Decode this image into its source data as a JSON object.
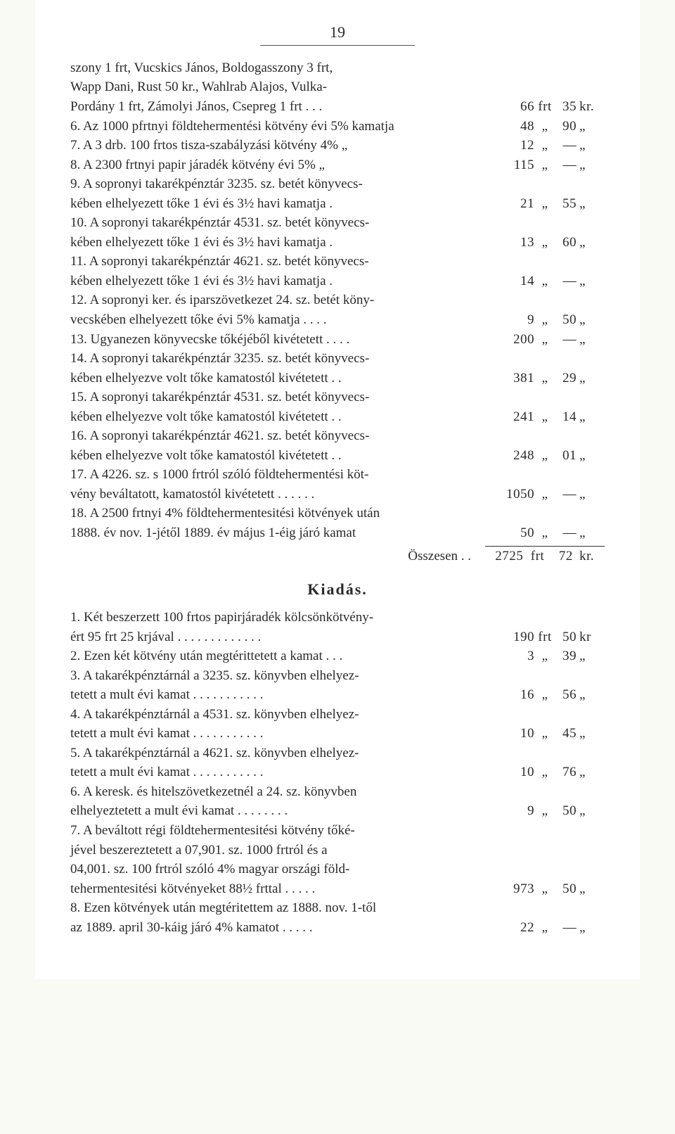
{
  "page_number": "19",
  "lines": [
    {
      "text": "szony 1 frt, Vucskics János, Boldogasszony 3 frt,",
      "amount": null,
      "indent": "first"
    },
    {
      "text": "Wapp Dani, Rust 50 kr., Wahlrab Alajos, Vulka-",
      "amount": null,
      "indent": "first"
    },
    {
      "text": "Pordány 1 frt, Zámolyi János, Csepreg 1 frt . . .",
      "amount": {
        "frt": "66",
        "u1": "frt",
        "kr": "35",
        "u2": "kr."
      },
      "indent": "first"
    },
    {
      "text": "6. Az 1000 pfrtnyi földtehermentési kötvény évi 5% kamatja",
      "amount": {
        "frt": "48",
        "u1": "„",
        "kr": "90",
        "u2": "„"
      }
    },
    {
      "text": "7. A 3 drb. 100 frtos tisza-szabályzási kötvény 4%   „",
      "amount": {
        "frt": "12",
        "u1": "„",
        "kr": "—",
        "u2": "„"
      }
    },
    {
      "text": "8. A 2300 frtnyi papir járadék kötvény évi 5%   „",
      "amount": {
        "frt": "115",
        "u1": "„",
        "kr": "—",
        "u2": "„"
      }
    },
    {
      "text": "9. A sopronyi takarékpénztár 3235. sz. betét könyvecs-",
      "amount": null
    },
    {
      "text": "kében elhelyezett tőke 1 évi és 3½ havi kamatja .",
      "amount": {
        "frt": "21",
        "u1": "„",
        "kr": "55",
        "u2": "„"
      },
      "indent": "cont"
    },
    {
      "text": "10. A sopronyi takarékpénztár 4531. sz. betét könyvecs-",
      "amount": null
    },
    {
      "text": "kében elhelyezett tőke 1 évi és 3½ havi kamatja .",
      "amount": {
        "frt": "13",
        "u1": "„",
        "kr": "60",
        "u2": "„"
      },
      "indent": "cont"
    },
    {
      "text": "11. A sopronyi takarékpénztár 4621. sz. betét könyvecs-",
      "amount": null
    },
    {
      "text": "kében elhelyezett tőke 1 évi és 3½ havi kamatja .",
      "amount": {
        "frt": "14",
        "u1": "„",
        "kr": "—",
        "u2": "„"
      },
      "indent": "cont"
    },
    {
      "text": "12. A sopronyi ker. és iparszövetkezet 24. sz. betét köny-",
      "amount": null
    },
    {
      "text": "vecskében elhelyezett tőke évi 5% kamatja . . . .",
      "amount": {
        "frt": "9",
        "u1": "„",
        "kr": "50",
        "u2": "„"
      },
      "indent": "cont"
    },
    {
      "text": "13. Ugyanezen könyvecske tőkéjéből kivétetett . . . .",
      "amount": {
        "frt": "200",
        "u1": "„",
        "kr": "—",
        "u2": "„"
      }
    },
    {
      "text": "14. A sopronyi takarékpénztár 3235. sz. betét könyvecs-",
      "amount": null
    },
    {
      "text": "kében elhelyezve volt tőke kamatostól kivétetett . .",
      "amount": {
        "frt": "381",
        "u1": "„",
        "kr": "29",
        "u2": "„"
      },
      "indent": "cont"
    },
    {
      "text": "15. A sopronyi takarékpénztár 4531. sz. betét könyvecs-",
      "amount": null
    },
    {
      "text": "kében elhelyezve volt tőke kamatostól kivétetett . .",
      "amount": {
        "frt": "241",
        "u1": "„",
        "kr": "14",
        "u2": "„"
      },
      "indent": "cont"
    },
    {
      "text": "16. A sopronyi takarékpénztár 4621. sz. betét könyvecs-",
      "amount": null
    },
    {
      "text": "kében elhelyezve volt tőke kamatostól kivétetett . .",
      "amount": {
        "frt": "248",
        "u1": "„",
        "kr": "01",
        "u2": "„"
      },
      "indent": "cont"
    },
    {
      "text": "17. A 4226. sz. s 1000 frtról szóló földtehermentési köt-",
      "amount": null
    },
    {
      "text": "vény beváltatott, kamatostól kivétetett . . . . . .",
      "amount": {
        "frt": "1050",
        "u1": "„",
        "kr": "—",
        "u2": "„"
      },
      "indent": "cont"
    },
    {
      "text": "18. A 2500 frtnyi 4% földtehermentesitési kötvények után",
      "amount": null
    },
    {
      "text": "1888. év nov. 1-jétől 1889. év május 1-éig járó kamat",
      "amount": {
        "frt": "50",
        "u1": "„",
        "kr": "—",
        "u2": "„"
      },
      "indent": "cont"
    }
  ],
  "sum_label": "Összesen  . .",
  "sum_amount": {
    "frt": "2725",
    "u1": "frt",
    "kr": "72",
    "u2": "kr."
  },
  "section_title": "Kiadás.",
  "kiadas_lines": [
    {
      "text": "1. Két beszerzett 100 frtos papirjáradék kölcsönkötvény-",
      "amount": null
    },
    {
      "text": "ért 95 frt 25 krjával . . . . . . . . . . . . .",
      "amount": {
        "frt": "190",
        "u1": "frt",
        "kr": "50",
        "u2": "kr"
      },
      "indent": "cont"
    },
    {
      "text": "2. Ezen két kötvény után megtérittetett a kamat . . .",
      "amount": {
        "frt": "3",
        "u1": "„",
        "kr": "39",
        "u2": "„"
      }
    },
    {
      "text": "3. A takarékpénztárnál a 3235. sz. könyvben elhelyez-",
      "amount": null
    },
    {
      "text": "tetett a mult évi kamat . . . . . . . . . . .",
      "amount": {
        "frt": "16",
        "u1": "„",
        "kr": "56",
        "u2": "„"
      },
      "indent": "cont"
    },
    {
      "text": "4. A takarékpénztárnál a 4531. sz. könyvben elhelyez-",
      "amount": null
    },
    {
      "text": "tetett a mult évi kamat . . . . . . . . . . .",
      "amount": {
        "frt": "10",
        "u1": "„",
        "kr": "45",
        "u2": "„"
      },
      "indent": "cont"
    },
    {
      "text": "5. A takarékpénztárnál a 4621. sz. könyvben elhelyez-",
      "amount": null
    },
    {
      "text": "tetett a mult évi kamat . . . . . . . . . . .",
      "amount": {
        "frt": "10",
        "u1": "„",
        "kr": "76",
        "u2": "„"
      },
      "indent": "cont"
    },
    {
      "text": "6. A keresk. és hitelszövetkezetnél a 24. sz. könyvben",
      "amount": null
    },
    {
      "text": "elhelyeztetett a mult évi kamat . . . . . . . .",
      "amount": {
        "frt": "9",
        "u1": "„",
        "kr": "50",
        "u2": "„"
      },
      "indent": "cont"
    },
    {
      "text": "7. A beváltott régi földtehermentesitési kötvény tőké-",
      "amount": null
    },
    {
      "text": "jével beszereztetett a 07,901. sz. 1000 frtról és a",
      "amount": null,
      "indent": "cont"
    },
    {
      "text": "04,001. sz. 100 frtról szóló 4% magyar országi föld-",
      "amount": null,
      "indent": "cont"
    },
    {
      "text": "tehermentesitési kötvényeket 88½ frttal . . . . .",
      "amount": {
        "frt": "973",
        "u1": "„",
        "kr": "50",
        "u2": "„"
      },
      "indent": "cont"
    },
    {
      "text": "8. Ezen kötvények után megtéritettem az 1888. nov. 1-től",
      "amount": null
    },
    {
      "text": "az 1889. april 30-káig járó 4% kamatot . . . . .",
      "amount": {
        "frt": "22",
        "u1": "„",
        "kr": "—",
        "u2": "„"
      },
      "indent": "cont"
    }
  ]
}
